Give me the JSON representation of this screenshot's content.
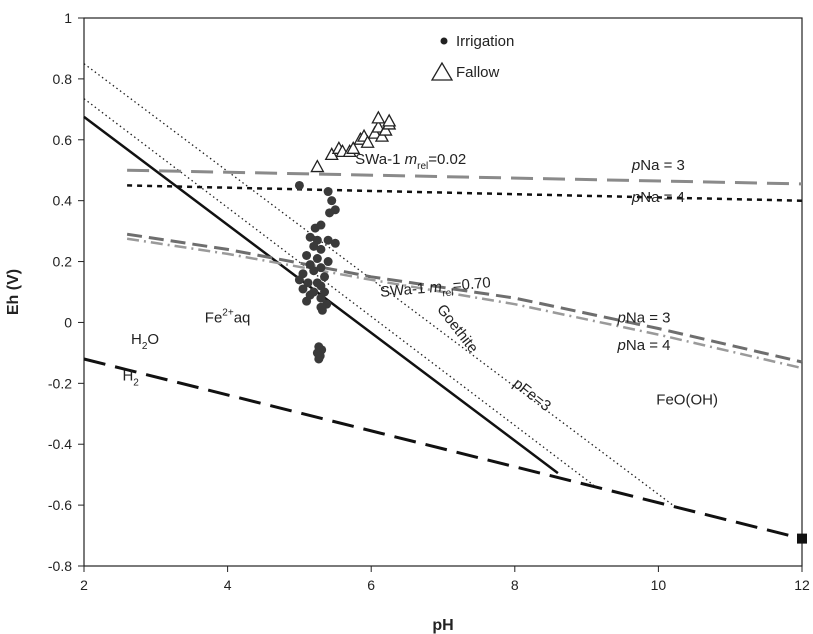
{
  "chart_data": {
    "type": "scatter",
    "xlabel": "pH",
    "ylabel": "Eh (V)",
    "xlim": [
      2,
      12
    ],
    "ylim": [
      -0.8,
      1.0
    ],
    "x_ticks": [
      2,
      4,
      6,
      8,
      10,
      12
    ],
    "y_ticks": [
      -0.8,
      -0.6,
      -0.4,
      -0.2,
      0,
      0.2,
      0.4,
      0.6,
      0.8,
      1
    ],
    "grid": false,
    "legend": {
      "position": "top-center",
      "entries": [
        {
          "label": "Irrigation",
          "marker": "filled-circle"
        },
        {
          "label": "Fallow",
          "marker": "open-triangle"
        }
      ]
    },
    "series": [
      {
        "name": "Irrigation",
        "marker": "filled-circle",
        "color": "#3a3a3a",
        "points": [
          [
            5.0,
            0.45
          ],
          [
            5.4,
            0.43
          ],
          [
            5.45,
            0.4
          ],
          [
            5.5,
            0.37
          ],
          [
            5.42,
            0.36
          ],
          [
            5.3,
            0.32
          ],
          [
            5.22,
            0.31
          ],
          [
            5.15,
            0.28
          ],
          [
            5.25,
            0.27
          ],
          [
            5.4,
            0.27
          ],
          [
            5.5,
            0.26
          ],
          [
            5.2,
            0.25
          ],
          [
            5.3,
            0.24
          ],
          [
            5.1,
            0.22
          ],
          [
            5.25,
            0.21
          ],
          [
            5.4,
            0.2
          ],
          [
            5.15,
            0.19
          ],
          [
            5.3,
            0.18
          ],
          [
            5.2,
            0.17
          ],
          [
            5.05,
            0.16
          ],
          [
            5.35,
            0.15
          ],
          [
            5.0,
            0.14
          ],
          [
            5.12,
            0.13
          ],
          [
            5.25,
            0.13
          ],
          [
            5.3,
            0.12
          ],
          [
            5.05,
            0.11
          ],
          [
            5.2,
            0.1
          ],
          [
            5.35,
            0.1
          ],
          [
            5.15,
            0.09
          ],
          [
            5.3,
            0.08
          ],
          [
            5.1,
            0.07
          ],
          [
            5.38,
            0.06
          ],
          [
            5.3,
            0.05
          ],
          [
            5.32,
            0.04
          ],
          [
            5.27,
            -0.08
          ],
          [
            5.31,
            -0.09
          ],
          [
            5.25,
            -0.1
          ],
          [
            5.29,
            -0.11
          ],
          [
            5.27,
            -0.12
          ]
        ]
      },
      {
        "name": "Fallow",
        "marker": "open-triangle",
        "color": "#222222",
        "points": [
          [
            5.25,
            0.51
          ],
          [
            5.45,
            0.55
          ],
          [
            5.55,
            0.57
          ],
          [
            5.6,
            0.56
          ],
          [
            5.7,
            0.56
          ],
          [
            5.75,
            0.57
          ],
          [
            5.85,
            0.6
          ],
          [
            5.9,
            0.61
          ],
          [
            5.95,
            0.59
          ],
          [
            6.05,
            0.62
          ],
          [
            6.1,
            0.64
          ],
          [
            6.15,
            0.61
          ],
          [
            6.2,
            0.63
          ],
          [
            6.25,
            0.65
          ],
          [
            6.1,
            0.67
          ],
          [
            6.25,
            0.66
          ]
        ]
      }
    ],
    "lines": [
      {
        "id": "water-lower-limit",
        "style": "long-dash",
        "color": "#111111",
        "width": 3,
        "points": [
          [
            2,
            -0.12
          ],
          [
            12,
            -0.71
          ]
        ]
      },
      {
        "id": "fe-goethite-boundary",
        "style": "solid",
        "color": "#111111",
        "width": 2.5,
        "points": [
          [
            2,
            0.675
          ],
          [
            8.6,
            -0.495
          ]
        ]
      },
      {
        "id": "pfe-3",
        "style": "dotted",
        "color": "#222222",
        "width": 1.3,
        "points": [
          [
            2,
            0.735
          ],
          [
            9.1,
            -0.535
          ]
        ]
      },
      {
        "id": "pfe-outer",
        "style": "dotted",
        "color": "#222222",
        "width": 1.3,
        "points": [
          [
            2,
            0.85
          ],
          [
            10.2,
            -0.6
          ]
        ]
      },
      {
        "id": "swa1-002-pna3",
        "style": "long-dash",
        "color": "#8a8a8a",
        "width": 3,
        "points": [
          [
            2.6,
            0.5
          ],
          [
            12,
            0.455
          ]
        ]
      },
      {
        "id": "swa1-002-pna4",
        "style": "short-dash",
        "color": "#111111",
        "width": 2.5,
        "points": [
          [
            2.6,
            0.45
          ],
          [
            12,
            0.4
          ]
        ]
      },
      {
        "id": "swa1-070-pna3",
        "style": "dash",
        "color": "#6e6e6e",
        "width": 3,
        "points": [
          [
            2.6,
            0.29
          ],
          [
            4,
            0.24
          ],
          [
            6,
            0.15
          ],
          [
            8,
            0.08
          ],
          [
            10,
            -0.02
          ],
          [
            12,
            -0.13
          ]
        ]
      },
      {
        "id": "swa1-070-pna4",
        "style": "dash-dot",
        "color": "#9a9a9a",
        "width": 2.5,
        "points": [
          [
            2.6,
            0.275
          ],
          [
            4,
            0.225
          ],
          [
            6,
            0.14
          ],
          [
            8,
            0.06
          ],
          [
            10,
            -0.04
          ],
          [
            12,
            -0.15
          ]
        ]
      }
    ],
    "end_marker": {
      "shape": "filled-square",
      "point": [
        12,
        -0.71
      ]
    },
    "annotations": [
      {
        "id": "fe2-label",
        "text": "Fe",
        "superscript": "2+",
        "suffix": "aq",
        "at": [
          4.0,
          0.0
        ]
      },
      {
        "id": "h2o-label",
        "text": "H",
        "subscript": "2",
        "suffix": "O",
        "at": [
          2.85,
          -0.07
        ]
      },
      {
        "id": "h2-label",
        "text": "H",
        "subscript": "2",
        "suffix": "",
        "at": [
          2.65,
          -0.19
        ]
      },
      {
        "id": "feooh-label",
        "text": "FeO(OH)",
        "at": [
          10.4,
          -0.27
        ]
      },
      {
        "id": "goethite-label",
        "text": "Goethite",
        "at": [
          7.15,
          -0.03
        ],
        "angle": 52
      },
      {
        "id": "pfe-label",
        "text": "pFe=3",
        "at": [
          8.2,
          -0.25
        ],
        "angle": 38
      },
      {
        "id": "swa1-002-label",
        "text": "SWa-1 ",
        "italic": "m",
        "subscript": "rel",
        "suffix": "=0.02",
        "at": [
          6.55,
          0.52
        ]
      },
      {
        "id": "swa1-070-label",
        "text": "SWa-1 ",
        "italic": "m",
        "subscript": "rel",
        "suffix": "=0.70",
        "at": [
          6.9,
          0.1
        ],
        "angle": -5
      },
      {
        "id": "pna3-top-label",
        "text": "Na = 3",
        "italic": "p",
        "at": [
          10.0,
          0.5
        ]
      },
      {
        "id": "pna4-top-label",
        "text": "Na = 4",
        "italic": "p",
        "at": [
          10.0,
          0.395
        ]
      },
      {
        "id": "pna3-mid-label",
        "text": "Na = 3",
        "italic": "p",
        "at": [
          9.8,
          0.0
        ]
      },
      {
        "id": "pna4-mid-label",
        "text": "Na = 4",
        "italic": "p",
        "at": [
          9.8,
          -0.09
        ]
      }
    ]
  }
}
